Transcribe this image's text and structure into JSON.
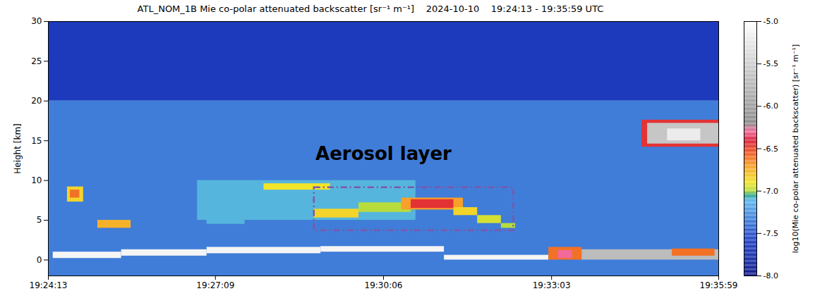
{
  "chart_data": {
    "type": "heatmap",
    "title": "ATL_NOM_1B Mie co-polar attenuated backscatter [sr⁻¹ m⁻¹]    2024-10-10    19:24:13 - 19:35:59 UTC",
    "ylabel": "Height [km]",
    "xlim": [
      "19:24:13",
      "19:35:59"
    ],
    "xticks": [
      "19:24:13",
      "19:27:09",
      "19:30:06",
      "19:33:03",
      "19:35:59"
    ],
    "ylim": [
      -2,
      30
    ],
    "yticks": [
      0,
      5,
      10,
      15,
      20,
      25,
      30
    ],
    "cells": [
      {
        "x": [
          "19:24:13",
          "19:35:59"
        ],
        "y": [
          20,
          30
        ],
        "value": -7.65
      },
      {
        "x": [
          "19:24:13",
          "19:35:59"
        ],
        "y": [
          -2,
          20
        ],
        "value": -7.35
      },
      {
        "x": [
          "19:24:33",
          "19:24:50"
        ],
        "y": [
          7.3,
          9.2
        ],
        "value": -6.85
      },
      {
        "x": [
          "19:24:36",
          "19:24:46"
        ],
        "y": [
          7.8,
          8.8
        ],
        "value": -6.6
      },
      {
        "x": [
          "19:25:05",
          "19:25:40"
        ],
        "y": [
          4.0,
          5.0
        ],
        "value": -6.75
      },
      {
        "x": [
          "19:26:50",
          "19:30:40"
        ],
        "y": [
          5.0,
          10.0
        ],
        "value": -7.1
      },
      {
        "x": [
          "19:27:00",
          "19:27:40"
        ],
        "y": [
          4.5,
          6.0
        ],
        "value": -7.1
      },
      {
        "x": [
          "19:28:00",
          "19:29:10"
        ],
        "y": [
          8.8,
          9.6
        ],
        "value": -6.9
      },
      {
        "x": [
          "19:28:53",
          "19:29:40"
        ],
        "y": [
          5.3,
          6.4
        ],
        "value": -6.85
      },
      {
        "x": [
          "19:29:40",
          "19:30:35"
        ],
        "y": [
          6.0,
          7.2
        ],
        "value": -7.0
      },
      {
        "x": [
          "19:30:25",
          "19:31:30"
        ],
        "y": [
          6.3,
          7.8
        ],
        "value": -6.7
      },
      {
        "x": [
          "19:30:35",
          "19:31:20"
        ],
        "y": [
          6.5,
          7.6
        ],
        "value": -6.45
      },
      {
        "x": [
          "19:31:20",
          "19:31:45"
        ],
        "y": [
          5.6,
          6.6
        ],
        "value": -6.85
      },
      {
        "x": [
          "19:31:45",
          "19:32:10"
        ],
        "y": [
          4.6,
          5.6
        ],
        "value": -6.95
      },
      {
        "x": [
          "19:32:10",
          "19:32:25"
        ],
        "y": [
          4.0,
          4.6
        ],
        "value": -7.0
      },
      {
        "x": [
          "19:24:18",
          "19:25:30"
        ],
        "y": [
          0.2,
          1.0
        ],
        "value": -5.1
      },
      {
        "x": [
          "19:25:30",
          "19:27:00"
        ],
        "y": [
          0.5,
          1.3
        ],
        "value": -5.1
      },
      {
        "x": [
          "19:27:00",
          "19:29:00"
        ],
        "y": [
          0.8,
          1.6
        ],
        "value": -5.1
      },
      {
        "x": [
          "19:29:00",
          "19:31:10"
        ],
        "y": [
          1.0,
          1.7
        ],
        "value": -5.1
      },
      {
        "x": [
          "19:31:10",
          "19:33:00"
        ],
        "y": [
          0.0,
          0.6
        ],
        "value": -5.1
      },
      {
        "x": [
          "19:33:00",
          "19:33:35"
        ],
        "y": [
          0.0,
          1.6
        ],
        "value": -6.6
      },
      {
        "x": [
          "19:33:10",
          "19:33:25"
        ],
        "y": [
          0.2,
          1.2
        ],
        "value": -6.3
      },
      {
        "x": [
          "19:33:35",
          "19:35:59"
        ],
        "y": [
          0.0,
          1.3
        ],
        "value": -5.7
      },
      {
        "x": [
          "19:35:10",
          "19:35:55"
        ],
        "y": [
          0.5,
          1.4
        ],
        "value": -6.6
      },
      {
        "x": [
          "19:34:38",
          "19:35:59"
        ],
        "y": [
          14.2,
          17.6
        ],
        "value": -6.45
      },
      {
        "x": [
          "19:34:44",
          "19:35:59"
        ],
        "y": [
          14.6,
          17.2
        ],
        "value": -5.6
      },
      {
        "x": [
          "19:35:05",
          "19:35:40"
        ],
        "y": [
          15.0,
          16.5
        ],
        "value": -5.2
      }
    ],
    "annotations": [
      {
        "text": "Aerosol layer",
        "x": "19:30:06",
        "y": 13.3
      },
      {
        "x": [
          "19:28:53",
          "19:32:23"
        ],
        "y": [
          3.7,
          9.1
        ],
        "color": "#7e57a8",
        "line_style": "dashdot"
      }
    ],
    "colorbar": {
      "range": [
        -8,
        -5
      ],
      "ticks": [
        {
          "value": -5,
          "label": "-5.0"
        },
        -5.5,
        {
          "value": -6,
          "label": "-6.0"
        },
        -6.5,
        {
          "value": -7,
          "label": "-7.0"
        },
        -7.5,
        {
          "value": -8,
          "label": "-8.0"
        }
      ],
      "label": "log10(Mie co-polar attenuated backscatter) [sr⁻¹ m⁻¹]"
    }
  }
}
